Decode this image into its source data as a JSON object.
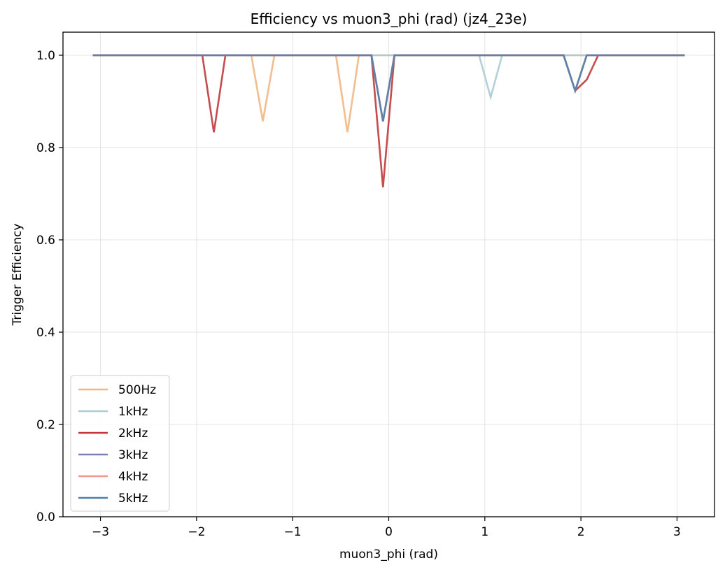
{
  "chart_data": {
    "type": "line",
    "title": "Efficiency vs muon3_phi (rad) (jz4_23e)",
    "xlabel": "muon3_phi (rad)",
    "ylabel": "Trigger Efficiency",
    "xlim": [
      -3.39,
      3.39
    ],
    "ylim": [
      0.0,
      1.05
    ],
    "xticks": [
      -3,
      -2,
      -1,
      0,
      1,
      2,
      3
    ],
    "xtick_labels": [
      "−3",
      "−2",
      "−1",
      "0",
      "1",
      "2",
      "3"
    ],
    "yticks": [
      0.0,
      0.2,
      0.4,
      0.6,
      0.8,
      1.0
    ],
    "ytick_labels": [
      "0.0",
      "0.2",
      "0.4",
      "0.6",
      "0.8",
      "1.0"
    ],
    "grid": true,
    "legend_position": "lower-left",
    "series": [
      {
        "name": "500Hz",
        "color": "#f2b682",
        "x": [
          -3.08,
          -1.43,
          -1.31,
          -1.19,
          -0.55,
          -0.43,
          -0.31,
          3.08
        ],
        "y": [
          1.0,
          1.0,
          0.857,
          1.0,
          1.0,
          0.833,
          1.0,
          1.0
        ]
      },
      {
        "name": "1kHz",
        "color": "#a9cdd4",
        "x": [
          -3.08,
          0.94,
          1.06,
          1.18,
          3.08
        ],
        "y": [
          1.0,
          1.0,
          0.909,
          1.0,
          1.0
        ]
      },
      {
        "name": "2kHz",
        "color": "#c0393b",
        "x": [
          -3.08,
          -1.94,
          -1.82,
          -1.7,
          -0.18,
          -0.06,
          0.06,
          1.82,
          1.94,
          2.06,
          2.18,
          3.08
        ],
        "y": [
          1.0,
          1.0,
          0.833,
          1.0,
          1.0,
          0.714,
          1.0,
          1.0,
          0.923,
          0.947,
          1.0,
          1.0
        ]
      },
      {
        "name": "3kHz",
        "color": "#7b7fb4",
        "x": [
          -3.08,
          -0.18,
          -0.06,
          0.06,
          1.82,
          1.94,
          2.06,
          3.08
        ],
        "y": [
          1.0,
          1.0,
          0.857,
          1.0,
          1.0,
          0.923,
          1.0,
          1.0
        ]
      },
      {
        "name": "4kHz",
        "color": "#f0998a",
        "x": [
          -3.08,
          -0.18,
          -0.06,
          0.06,
          1.82,
          1.94,
          2.06,
          3.08
        ],
        "y": [
          1.0,
          1.0,
          0.857,
          1.0,
          1.0,
          0.923,
          1.0,
          1.0
        ]
      },
      {
        "name": "5kHz",
        "color": "#4e7fad",
        "x": [
          -3.08,
          -0.18,
          -0.06,
          0.06,
          1.82,
          1.94,
          2.06,
          3.08
        ],
        "y": [
          1.0,
          1.0,
          0.857,
          1.0,
          1.0,
          0.923,
          1.0,
          1.0
        ]
      }
    ]
  }
}
